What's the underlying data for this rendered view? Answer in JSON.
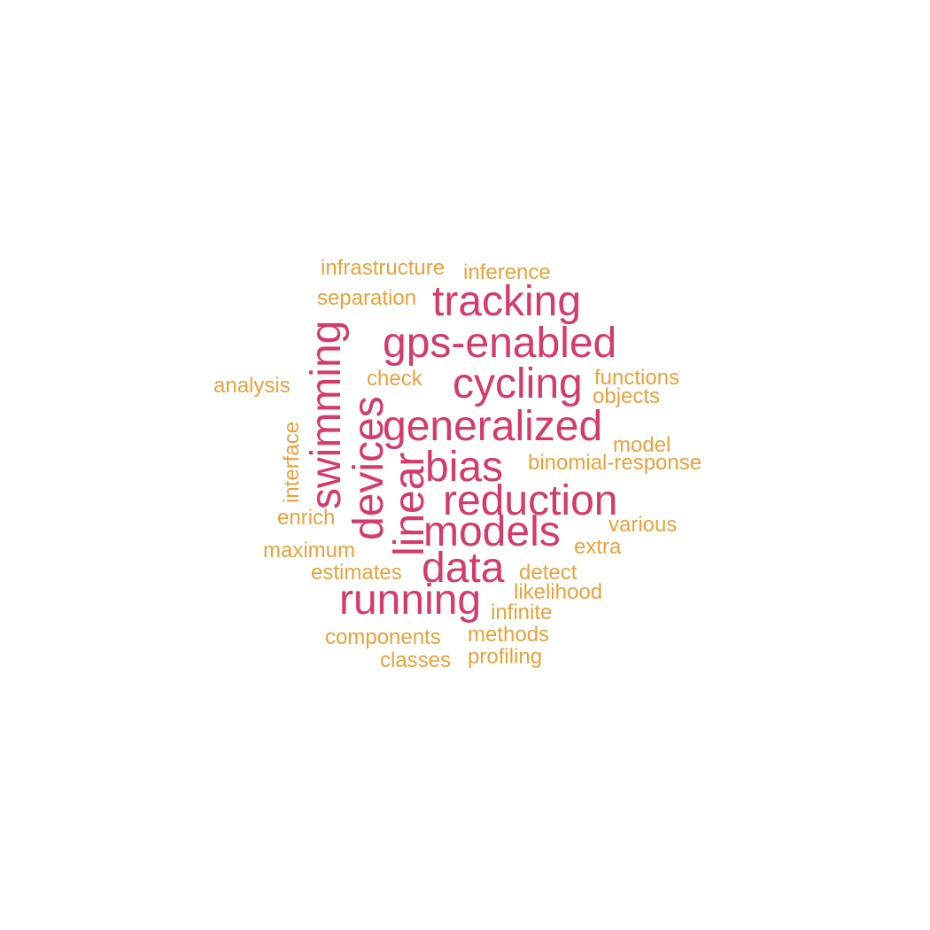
{
  "colors": {
    "primary": "#d43a6b",
    "secondary": "#e9a23b",
    "background": "#ffffff"
  },
  "words": [
    {
      "text": "tracking",
      "group": "primary"
    },
    {
      "text": "gps-enabled",
      "group": "primary"
    },
    {
      "text": "cycling",
      "group": "primary"
    },
    {
      "text": "generalized",
      "group": "primary"
    },
    {
      "text": "swimming",
      "group": "primary"
    },
    {
      "text": "devices",
      "group": "primary"
    },
    {
      "text": "linear",
      "group": "primary"
    },
    {
      "text": "bias",
      "group": "primary"
    },
    {
      "text": "reduction",
      "group": "primary"
    },
    {
      "text": "models",
      "group": "primary"
    },
    {
      "text": "data",
      "group": "primary"
    },
    {
      "text": "running",
      "group": "primary"
    },
    {
      "text": "infrastructure",
      "group": "secondary"
    },
    {
      "text": "inference",
      "group": "secondary"
    },
    {
      "text": "separation",
      "group": "secondary"
    },
    {
      "text": "analysis",
      "group": "secondary"
    },
    {
      "text": "check",
      "group": "secondary"
    },
    {
      "text": "functions",
      "group": "secondary"
    },
    {
      "text": "objects",
      "group": "secondary"
    },
    {
      "text": "interface",
      "group": "secondary"
    },
    {
      "text": "model",
      "group": "secondary"
    },
    {
      "text": "binomial-response",
      "group": "secondary"
    },
    {
      "text": "enrich",
      "group": "secondary"
    },
    {
      "text": "various",
      "group": "secondary"
    },
    {
      "text": "maximum",
      "group": "secondary"
    },
    {
      "text": "extra",
      "group": "secondary"
    },
    {
      "text": "estimates",
      "group": "secondary"
    },
    {
      "text": "detect",
      "group": "secondary"
    },
    {
      "text": "likelihood",
      "group": "secondary"
    },
    {
      "text": "infinite",
      "group": "secondary"
    },
    {
      "text": "components",
      "group": "secondary"
    },
    {
      "text": "methods",
      "group": "secondary"
    },
    {
      "text": "classes",
      "group": "secondary"
    },
    {
      "text": "profiling",
      "group": "secondary"
    }
  ]
}
